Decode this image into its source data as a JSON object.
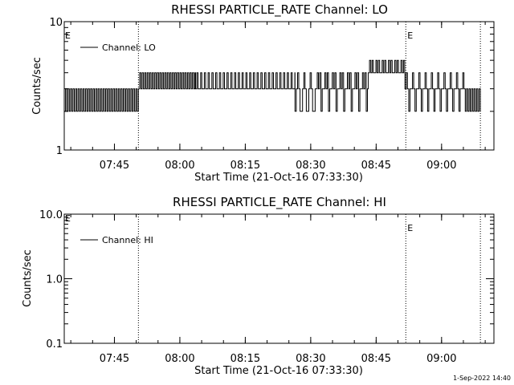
{
  "chart_data": [
    {
      "type": "line",
      "title": "RHESSI PARTICLE_RATE Channel: LO",
      "xlabel": "Start Time (21-Oct-16 07:33:30)",
      "ylabel": "Counts/sec",
      "y_scale": "log",
      "ylim": [
        1,
        10
      ],
      "y_tick_labels": [
        "1",
        "10"
      ],
      "x_tick_labels": [
        "07:45",
        "08:00",
        "08:15",
        "08:30",
        "08:45",
        "09:00"
      ],
      "x_ticks_hours": [
        7.75,
        8.0,
        8.25,
        8.5,
        8.75,
        9.0
      ],
      "xlim_hours": [
        7.5583,
        9.2
      ],
      "legend": {
        "label": "Channel: LO",
        "placement": "top-left"
      },
      "event_lines": [
        {
          "time_hours": 7.8417,
          "style": "dotted",
          "marker": ""
        },
        {
          "time_hours": 8.8633,
          "style": "dotted",
          "marker": "E"
        },
        {
          "time_hours": 9.1483,
          "style": "dotted",
          "marker": ""
        }
      ],
      "start_marker": "E",
      "series": [
        {
          "name": "Channel: LO",
          "segments": [
            {
              "start": 7.5583,
              "end": 7.8417,
              "values": [
                2,
                3
              ]
            },
            {
              "start": 7.8417,
              "end": 8.06,
              "values": [
                3,
                4
              ]
            },
            {
              "start": 8.06,
              "end": 8.44,
              "values": [
                3,
                4,
                3,
                3,
                4,
                3
              ]
            },
            {
              "start": 8.44,
              "end": 8.52,
              "values": [
                2,
                3,
                4,
                3,
                2
              ]
            },
            {
              "start": 8.52,
              "end": 8.72,
              "values": [
                3,
                4,
                3,
                4,
                2,
                3
              ]
            },
            {
              "start": 8.72,
              "end": 8.86,
              "values": [
                4,
                5,
                4,
                5,
                4
              ]
            },
            {
              "start": 8.86,
              "end": 9.1,
              "values": [
                3,
                4,
                3,
                2,
                3
              ]
            },
            {
              "start": 9.1,
              "end": 9.15,
              "values": [
                2,
                3
              ]
            }
          ]
        }
      ]
    },
    {
      "type": "line",
      "title": "RHESSI PARTICLE_RATE Channel: HI",
      "xlabel": "Start Time (21-Oct-16 07:33:30)",
      "ylabel": "Counts/sec",
      "y_scale": "log",
      "ylim": [
        0.1,
        10
      ],
      "y_tick_labels": [
        "0.1",
        "1.0",
        "10.0"
      ],
      "x_tick_labels": [
        "07:45",
        "08:00",
        "08:15",
        "08:30",
        "08:45",
        "09:00"
      ],
      "x_ticks_hours": [
        7.75,
        8.0,
        8.25,
        8.5,
        8.75,
        9.0
      ],
      "xlim_hours": [
        7.5583,
        9.2
      ],
      "legend": {
        "label": "Channel: HI",
        "placement": "top-left"
      },
      "event_lines": [
        {
          "time_hours": 7.8417,
          "style": "dotted",
          "marker": ""
        },
        {
          "time_hours": 8.8633,
          "style": "dotted",
          "marker": "E"
        },
        {
          "time_hours": 9.1483,
          "style": "dotted",
          "marker": ""
        }
      ],
      "start_marker": "E",
      "series": [
        {
          "name": "Channel: HI",
          "segments": []
        }
      ]
    }
  ],
  "footer": {
    "timestamp": "1-Sep-2022 14:40"
  }
}
